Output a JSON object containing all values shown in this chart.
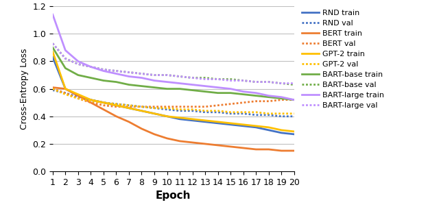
{
  "epochs": [
    1,
    2,
    3,
    4,
    5,
    6,
    7,
    8,
    9,
    10,
    11,
    12,
    13,
    14,
    15,
    16,
    17,
    18,
    19,
    20
  ],
  "RND_train": [
    0.83,
    0.6,
    0.55,
    0.52,
    0.5,
    0.48,
    0.46,
    0.44,
    0.42,
    0.4,
    0.38,
    0.37,
    0.36,
    0.35,
    0.34,
    0.33,
    0.32,
    0.3,
    0.28,
    0.27
  ],
  "RND_val": [
    0.59,
    0.57,
    0.54,
    0.52,
    0.5,
    0.49,
    0.48,
    0.47,
    0.46,
    0.45,
    0.44,
    0.44,
    0.43,
    0.43,
    0.42,
    0.42,
    0.41,
    0.41,
    0.4,
    0.4
  ],
  "BERT_train": [
    0.61,
    0.6,
    0.55,
    0.5,
    0.45,
    0.4,
    0.36,
    0.31,
    0.27,
    0.24,
    0.22,
    0.21,
    0.2,
    0.19,
    0.18,
    0.17,
    0.16,
    0.16,
    0.15,
    0.15
  ],
  "BERT_val": [
    0.6,
    0.57,
    0.53,
    0.5,
    0.48,
    0.47,
    0.47,
    0.47,
    0.47,
    0.47,
    0.47,
    0.47,
    0.47,
    0.48,
    0.49,
    0.5,
    0.51,
    0.51,
    0.52,
    0.52
  ],
  "GPT2_train": [
    0.87,
    0.6,
    0.56,
    0.52,
    0.5,
    0.48,
    0.46,
    0.44,
    0.42,
    0.4,
    0.39,
    0.38,
    0.37,
    0.36,
    0.35,
    0.34,
    0.33,
    0.32,
    0.3,
    0.29
  ],
  "GPT2_val": [
    0.6,
    0.56,
    0.53,
    0.51,
    0.5,
    0.49,
    0.48,
    0.47,
    0.46,
    0.46,
    0.45,
    0.45,
    0.44,
    0.44,
    0.43,
    0.43,
    0.43,
    0.42,
    0.42,
    0.42
  ],
  "BARTbase_train": [
    0.9,
    0.75,
    0.7,
    0.68,
    0.66,
    0.65,
    0.63,
    0.62,
    0.61,
    0.6,
    0.6,
    0.59,
    0.58,
    0.57,
    0.57,
    0.56,
    0.55,
    0.54,
    0.53,
    0.52
  ],
  "BARTbase_val": [
    0.93,
    0.82,
    0.78,
    0.76,
    0.74,
    0.73,
    0.72,
    0.71,
    0.7,
    0.7,
    0.69,
    0.68,
    0.68,
    0.67,
    0.67,
    0.66,
    0.65,
    0.65,
    0.64,
    0.63
  ],
  "BARTlarge_train": [
    1.14,
    0.88,
    0.8,
    0.76,
    0.73,
    0.71,
    0.69,
    0.68,
    0.66,
    0.65,
    0.64,
    0.63,
    0.62,
    0.61,
    0.6,
    0.58,
    0.57,
    0.55,
    0.54,
    0.52
  ],
  "BARTlarge_val": [
    0.93,
    0.82,
    0.78,
    0.76,
    0.74,
    0.73,
    0.72,
    0.71,
    0.7,
    0.7,
    0.69,
    0.68,
    0.67,
    0.67,
    0.66,
    0.66,
    0.65,
    0.65,
    0.64,
    0.64
  ],
  "colors": {
    "RND": "#4472C4",
    "BERT": "#ED7D31",
    "GPT2": "#FFC000",
    "BARTbase": "#70AD47",
    "BARTlarge": "#BF8FFF"
  },
  "ylabel": "Cross-Entropy Loss",
  "xlabel": "Epoch",
  "ylim": [
    0,
    1.2
  ],
  "yticks": [
    0,
    0.2,
    0.4,
    0.6,
    0.8,
    1.0,
    1.2
  ],
  "figsize": [
    6.4,
    3.05
  ],
  "dpi": 100
}
